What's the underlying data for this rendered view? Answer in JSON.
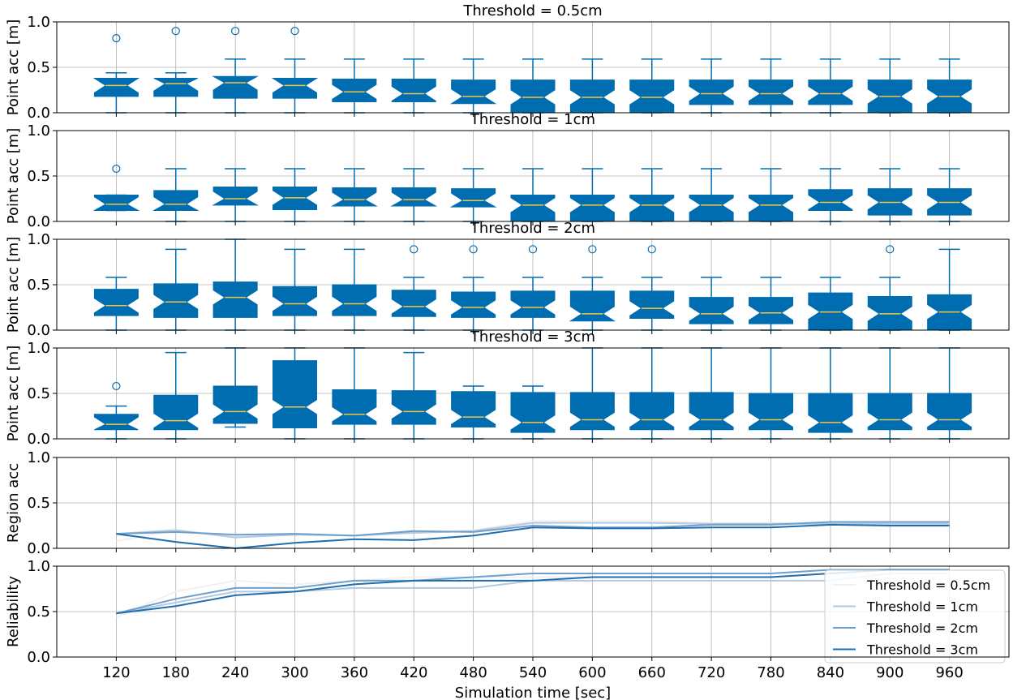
{
  "figure": {
    "xlabel": "Simulation time [sec]",
    "x_categories": [
      "120",
      "180",
      "240",
      "300",
      "360",
      "420",
      "480",
      "540",
      "600",
      "660",
      "720",
      "780",
      "840",
      "900",
      "960"
    ]
  },
  "colors": {
    "box_fill": "#006DB0",
    "median": "#F5C542",
    "series": [
      "#F0F0F5",
      "#B4C8DE",
      "#6FA0CC",
      "#1F6EAE"
    ],
    "grid": "#b0b0b0"
  },
  "chart_data": [
    {
      "type": "boxplot",
      "title": "Threshold = 0.5cm",
      "ylabel": "Point acc [m]",
      "ylim": [
        0,
        1.0
      ],
      "yticks": [
        "0.0",
        "0.5",
        "1.0"
      ],
      "categories": [
        "120",
        "180",
        "240",
        "300",
        "360",
        "420",
        "480",
        "540",
        "600",
        "660",
        "720",
        "780",
        "840",
        "900",
        "960"
      ],
      "boxes": [
        {
          "wl": 0.0,
          "q1": 0.18,
          "med": 0.3,
          "q3": 0.38,
          "wh": 0.44,
          "out": [
            0.82
          ]
        },
        {
          "wl": 0.0,
          "q1": 0.18,
          "med": 0.32,
          "q3": 0.38,
          "wh": 0.44,
          "out": [
            0.9
          ]
        },
        {
          "wl": 0.0,
          "q1": 0.16,
          "med": 0.33,
          "q3": 0.4,
          "wh": 0.59,
          "out": [
            0.9
          ]
        },
        {
          "wl": 0.0,
          "q1": 0.16,
          "med": 0.3,
          "q3": 0.38,
          "wh": 0.59,
          "out": [
            0.9
          ]
        },
        {
          "wl": 0.0,
          "q1": 0.12,
          "med": 0.23,
          "q3": 0.37,
          "wh": 0.59,
          "out": []
        },
        {
          "wl": 0.0,
          "q1": 0.12,
          "med": 0.21,
          "q3": 0.37,
          "wh": 0.59,
          "out": []
        },
        {
          "wl": 0.0,
          "q1": 0.1,
          "med": 0.18,
          "q3": 0.36,
          "wh": 0.59,
          "out": []
        },
        {
          "wl": 0.0,
          "q1": 0.0,
          "med": 0.17,
          "q3": 0.36,
          "wh": 0.59,
          "out": []
        },
        {
          "wl": 0.0,
          "q1": 0.0,
          "med": 0.17,
          "q3": 0.36,
          "wh": 0.59,
          "out": []
        },
        {
          "wl": 0.0,
          "q1": 0.0,
          "med": 0.17,
          "q3": 0.36,
          "wh": 0.59,
          "out": []
        },
        {
          "wl": 0.0,
          "q1": 0.09,
          "med": 0.21,
          "q3": 0.36,
          "wh": 0.59,
          "out": []
        },
        {
          "wl": 0.0,
          "q1": 0.09,
          "med": 0.21,
          "q3": 0.36,
          "wh": 0.59,
          "out": []
        },
        {
          "wl": 0.0,
          "q1": 0.09,
          "med": 0.21,
          "q3": 0.36,
          "wh": 0.59,
          "out": []
        },
        {
          "wl": 0.0,
          "q1": 0.0,
          "med": 0.18,
          "q3": 0.36,
          "wh": 0.59,
          "out": []
        },
        {
          "wl": 0.0,
          "q1": 0.0,
          "med": 0.18,
          "q3": 0.36,
          "wh": 0.59,
          "out": []
        }
      ]
    },
    {
      "type": "boxplot",
      "title": "Threshold = 1cm",
      "ylabel": "Point acc [m]",
      "ylim": [
        0,
        1.0
      ],
      "yticks": [
        "0.0",
        "0.5",
        "1.0"
      ],
      "categories": [
        "120",
        "180",
        "240",
        "300",
        "360",
        "420",
        "480",
        "540",
        "600",
        "660",
        "720",
        "780",
        "840",
        "900",
        "960"
      ],
      "boxes": [
        {
          "wl": 0.12,
          "q1": 0.12,
          "med": 0.19,
          "q3": 0.29,
          "wh": 0.29,
          "out": [
            0.58
          ]
        },
        {
          "wl": 0.0,
          "q1": 0.12,
          "med": 0.19,
          "q3": 0.34,
          "wh": 0.58,
          "out": []
        },
        {
          "wl": 0.0,
          "q1": 0.18,
          "med": 0.25,
          "q3": 0.38,
          "wh": 0.58,
          "out": []
        },
        {
          "wl": 0.0,
          "q1": 0.13,
          "med": 0.26,
          "q3": 0.38,
          "wh": 0.58,
          "out": []
        },
        {
          "wl": 0.0,
          "q1": 0.17,
          "med": 0.24,
          "q3": 0.37,
          "wh": 0.58,
          "out": []
        },
        {
          "wl": 0.0,
          "q1": 0.17,
          "med": 0.24,
          "q3": 0.37,
          "wh": 0.58,
          "out": []
        },
        {
          "wl": 0.0,
          "q1": 0.16,
          "med": 0.23,
          "q3": 0.36,
          "wh": 0.58,
          "out": []
        },
        {
          "wl": 0.0,
          "q1": 0.0,
          "med": 0.18,
          "q3": 0.29,
          "wh": 0.58,
          "out": []
        },
        {
          "wl": 0.0,
          "q1": 0.0,
          "med": 0.18,
          "q3": 0.29,
          "wh": 0.58,
          "out": []
        },
        {
          "wl": 0.0,
          "q1": 0.0,
          "med": 0.18,
          "q3": 0.29,
          "wh": 0.58,
          "out": []
        },
        {
          "wl": 0.0,
          "q1": 0.0,
          "med": 0.18,
          "q3": 0.29,
          "wh": 0.58,
          "out": []
        },
        {
          "wl": 0.0,
          "q1": 0.0,
          "med": 0.18,
          "q3": 0.29,
          "wh": 0.58,
          "out": []
        },
        {
          "wl": 0.0,
          "q1": 0.12,
          "med": 0.21,
          "q3": 0.35,
          "wh": 0.58,
          "out": []
        },
        {
          "wl": 0.0,
          "q1": 0.07,
          "med": 0.21,
          "q3": 0.36,
          "wh": 0.58,
          "out": []
        },
        {
          "wl": 0.0,
          "q1": 0.07,
          "med": 0.21,
          "q3": 0.36,
          "wh": 0.58,
          "out": []
        }
      ]
    },
    {
      "type": "boxplot",
      "title": "Threshold = 2cm",
      "ylabel": "Point acc [m]",
      "ylim": [
        0,
        1.0
      ],
      "yticks": [
        "0.0",
        "0.5",
        "1.0"
      ],
      "categories": [
        "120",
        "180",
        "240",
        "300",
        "360",
        "420",
        "480",
        "540",
        "600",
        "660",
        "720",
        "780",
        "840",
        "900",
        "960"
      ],
      "boxes": [
        {
          "wl": 0.0,
          "q1": 0.16,
          "med": 0.27,
          "q3": 0.45,
          "wh": 0.58,
          "out": []
        },
        {
          "wl": 0.0,
          "q1": 0.14,
          "med": 0.31,
          "q3": 0.51,
          "wh": 0.89,
          "out": []
        },
        {
          "wl": 0.0,
          "q1": 0.14,
          "med": 0.36,
          "q3": 0.53,
          "wh": 1.0,
          "out": []
        },
        {
          "wl": 0.0,
          "q1": 0.16,
          "med": 0.29,
          "q3": 0.48,
          "wh": 0.89,
          "out": []
        },
        {
          "wl": 0.0,
          "q1": 0.16,
          "med": 0.29,
          "q3": 0.5,
          "wh": 0.89,
          "out": []
        },
        {
          "wl": 0.0,
          "q1": 0.15,
          "med": 0.26,
          "q3": 0.44,
          "wh": 0.58,
          "out": [
            0.89
          ]
        },
        {
          "wl": 0.0,
          "q1": 0.14,
          "med": 0.25,
          "q3": 0.42,
          "wh": 0.58,
          "out": [
            0.89
          ]
        },
        {
          "wl": 0.0,
          "q1": 0.14,
          "med": 0.25,
          "q3": 0.43,
          "wh": 0.58,
          "out": [
            0.89
          ]
        },
        {
          "wl": 0.0,
          "q1": 0.1,
          "med": 0.18,
          "q3": 0.43,
          "wh": 0.58,
          "out": [
            0.89
          ]
        },
        {
          "wl": 0.0,
          "q1": 0.13,
          "med": 0.24,
          "q3": 0.43,
          "wh": 0.58,
          "out": [
            0.89
          ]
        },
        {
          "wl": 0.0,
          "q1": 0.07,
          "med": 0.18,
          "q3": 0.36,
          "wh": 0.58,
          "out": []
        },
        {
          "wl": 0.0,
          "q1": 0.07,
          "med": 0.19,
          "q3": 0.36,
          "wh": 0.58,
          "out": []
        },
        {
          "wl": 0.0,
          "q1": 0.0,
          "med": 0.2,
          "q3": 0.41,
          "wh": 0.58,
          "out": []
        },
        {
          "wl": 0.0,
          "q1": 0.0,
          "med": 0.18,
          "q3": 0.37,
          "wh": 0.58,
          "out": [
            0.89
          ]
        },
        {
          "wl": 0.0,
          "q1": 0.0,
          "med": 0.2,
          "q3": 0.39,
          "wh": 0.89,
          "out": []
        }
      ]
    },
    {
      "type": "boxplot",
      "title": "Threshold = 3cm",
      "ylabel": "Point acc [m]",
      "ylim": [
        0,
        1.0
      ],
      "yticks": [
        "0.0",
        "0.5",
        "1.0"
      ],
      "categories": [
        "120",
        "180",
        "240",
        "300",
        "360",
        "420",
        "480",
        "540",
        "600",
        "660",
        "720",
        "780",
        "840",
        "900",
        "960"
      ],
      "boxes": [
        {
          "wl": 0.0,
          "q1": 0.1,
          "med": 0.16,
          "q3": 0.27,
          "wh": 0.36,
          "out": [
            0.58
          ]
        },
        {
          "wl": 0.0,
          "q1": 0.1,
          "med": 0.2,
          "q3": 0.48,
          "wh": 0.95,
          "out": []
        },
        {
          "wl": 0.13,
          "q1": 0.17,
          "med": 0.3,
          "q3": 0.58,
          "wh": 1.0,
          "out": []
        },
        {
          "wl": 0.0,
          "q1": 0.12,
          "med": 0.35,
          "q3": 0.86,
          "wh": 1.0,
          "out": []
        },
        {
          "wl": 0.0,
          "q1": 0.16,
          "med": 0.27,
          "q3": 0.54,
          "wh": 1.0,
          "out": []
        },
        {
          "wl": 0.0,
          "q1": 0.16,
          "med": 0.3,
          "q3": 0.53,
          "wh": 0.95,
          "out": []
        },
        {
          "wl": 0.0,
          "q1": 0.13,
          "med": 0.24,
          "q3": 0.52,
          "wh": 0.58,
          "out": []
        },
        {
          "wl": 0.0,
          "q1": 0.07,
          "med": 0.18,
          "q3": 0.51,
          "wh": 0.58,
          "out": []
        },
        {
          "wl": 0.0,
          "q1": 0.1,
          "med": 0.21,
          "q3": 0.51,
          "wh": 1.0,
          "out": []
        },
        {
          "wl": 0.0,
          "q1": 0.1,
          "med": 0.21,
          "q3": 0.51,
          "wh": 1.0,
          "out": []
        },
        {
          "wl": 0.0,
          "q1": 0.1,
          "med": 0.21,
          "q3": 0.51,
          "wh": 1.0,
          "out": []
        },
        {
          "wl": 0.0,
          "q1": 0.1,
          "med": 0.21,
          "q3": 0.5,
          "wh": 1.0,
          "out": []
        },
        {
          "wl": 0.0,
          "q1": 0.07,
          "med": 0.18,
          "q3": 0.5,
          "wh": 1.0,
          "out": []
        },
        {
          "wl": 0.0,
          "q1": 0.1,
          "med": 0.21,
          "q3": 0.5,
          "wh": 1.0,
          "out": []
        },
        {
          "wl": 0.0,
          "q1": 0.1,
          "med": 0.21,
          "q3": 0.5,
          "wh": 1.0,
          "out": []
        }
      ]
    },
    {
      "type": "line",
      "title": "",
      "ylabel": "Region acc",
      "ylim": [
        0,
        1.0
      ],
      "yticks": [
        "0.0",
        "0.5",
        "1.0"
      ],
      "categories": [
        "120",
        "180",
        "240",
        "300",
        "360",
        "420",
        "480",
        "540",
        "600",
        "660",
        "720",
        "780",
        "840",
        "900",
        "960"
      ],
      "series": [
        {
          "name": "Threshold = 0.5cm",
          "values": [
            0.08,
            0.2,
            0.13,
            0.16,
            0.14,
            0.17,
            0.2,
            0.3,
            0.3,
            0.3,
            0.28,
            0.28,
            0.28,
            0.28,
            0.28
          ]
        },
        {
          "name": "Threshold = 1cm",
          "values": [
            0.16,
            0.2,
            0.12,
            0.15,
            0.14,
            0.17,
            0.19,
            0.28,
            0.28,
            0.28,
            0.27,
            0.27,
            0.27,
            0.27,
            0.27
          ]
        },
        {
          "name": "Threshold = 2cm",
          "values": [
            0.16,
            0.18,
            0.15,
            0.16,
            0.14,
            0.19,
            0.18,
            0.25,
            0.23,
            0.23,
            0.26,
            0.26,
            0.29,
            0.29,
            0.29
          ]
        },
        {
          "name": "Threshold = 3cm",
          "values": [
            0.16,
            0.07,
            0.0,
            0.06,
            0.1,
            0.09,
            0.14,
            0.23,
            0.22,
            0.22,
            0.23,
            0.23,
            0.26,
            0.25,
            0.25
          ]
        }
      ]
    },
    {
      "type": "line",
      "title": "",
      "ylabel": "Reliability",
      "ylim": [
        0,
        1.0
      ],
      "yticks": [
        "0.0",
        "0.5",
        "1.0"
      ],
      "categories": [
        "120",
        "180",
        "240",
        "300",
        "360",
        "420",
        "480",
        "540",
        "600",
        "660",
        "720",
        "780",
        "840",
        "900",
        "960"
      ],
      "legend": {
        "location": "lower-right",
        "entries": [
          "Threshold = 0.5cm",
          "Threshold = 1cm",
          "Threshold = 2cm",
          "Threshold = 3cm"
        ]
      },
      "series": [
        {
          "name": "Threshold = 0.5cm",
          "values": [
            0.44,
            0.72,
            0.84,
            0.8,
            0.84,
            0.88,
            0.88,
            0.88,
            0.88,
            0.88,
            0.88,
            0.88,
            0.92,
            0.96,
            0.96
          ]
        },
        {
          "name": "Threshold = 1cm",
          "values": [
            0.48,
            0.6,
            0.72,
            0.72,
            0.76,
            0.76,
            0.76,
            0.84,
            0.84,
            0.84,
            0.84,
            0.84,
            0.84,
            0.92,
            0.92
          ]
        },
        {
          "name": "Threshold = 2cm",
          "values": [
            0.48,
            0.64,
            0.76,
            0.76,
            0.84,
            0.84,
            0.88,
            0.92,
            0.92,
            0.92,
            0.92,
            0.92,
            0.96,
            0.96,
            0.96
          ]
        },
        {
          "name": "Threshold = 3cm",
          "values": [
            0.48,
            0.56,
            0.68,
            0.72,
            0.8,
            0.84,
            0.84,
            0.84,
            0.88,
            0.88,
            0.88,
            0.88,
            0.92,
            0.96,
            0.96
          ]
        }
      ]
    }
  ]
}
